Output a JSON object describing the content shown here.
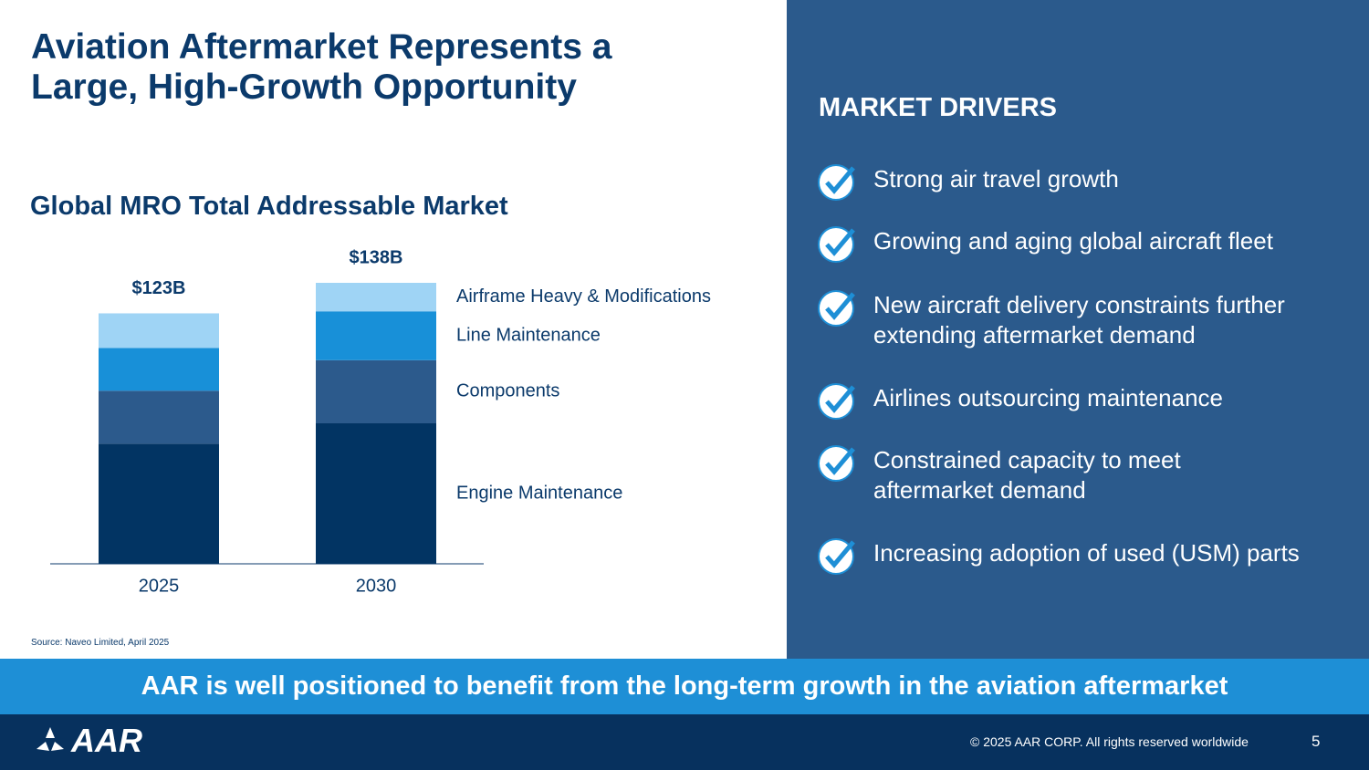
{
  "header": {
    "title_lines": [
      "Aviation Aftermarket Represents a",
      "Large, High-Growth Opportunity"
    ]
  },
  "chart_data": {
    "type": "stacked-bar",
    "title": "Global MRO Total Addressable Market",
    "categories": [
      "2025",
      "2030"
    ],
    "series": [
      {
        "name": "Engine Maintenance",
        "color": "#023463",
        "values": [
          59,
          69
        ]
      },
      {
        "name": "Components",
        "color": "#2c5a8c",
        "values": [
          26,
          31
        ]
      },
      {
        "name": "Line Maintenance",
        "color": "#1890d8",
        "values": [
          21,
          24
        ]
      },
      {
        "name": "Airframe Heavy & Modifications",
        "color": "#9fd4f5",
        "values": [
          17,
          14
        ]
      }
    ],
    "totals": {
      "values": [
        123,
        138
      ],
      "value_labels": [
        "$123B",
        "$138B"
      ]
    },
    "source": "Source: Naveo Limited, April 2025"
  },
  "drivers": {
    "title": "MARKET DRIVERS",
    "items": [
      [
        "Strong air travel growth"
      ],
      [
        "Growing and aging global aircraft fleet"
      ],
      [
        "New aircraft delivery constraints further",
        "extending aftermarket demand"
      ],
      [
        "Airlines outsourcing maintenance"
      ],
      [
        "Constrained capacity to meet",
        "aftermarket demand"
      ],
      [
        "Increasing adoption of used (USM) parts"
      ]
    ]
  },
  "banner": "AAR is well positioned to benefit from the long-term growth in the aviation aftermarket",
  "footer": {
    "logo": "AAR",
    "copyright": "© 2025 AAR CORP. All rights reserved worldwide",
    "page": "5"
  }
}
